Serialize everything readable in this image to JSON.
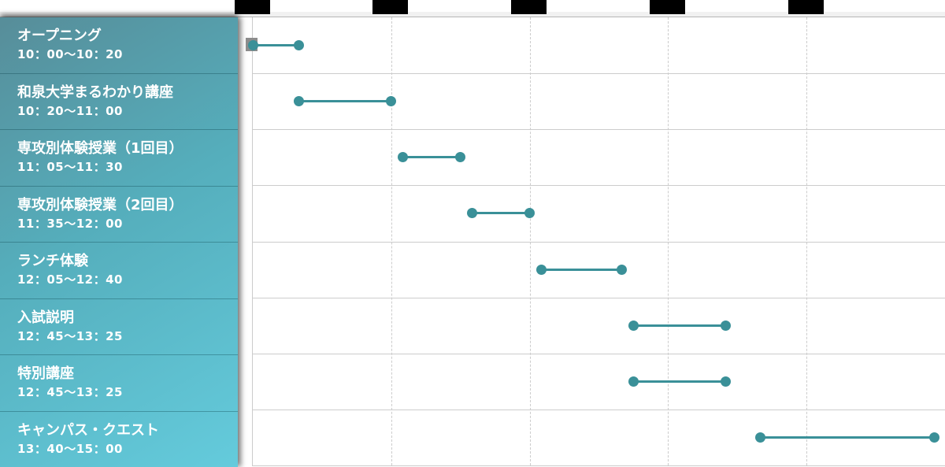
{
  "page": {
    "background": "#ffffff"
  },
  "colors": {
    "timeline_segment": "#3a9098",
    "sidebar_gradient_start": "#578d99",
    "sidebar_gradient_mid": "#55aebc",
    "sidebar_gradient_end": "#64cbdc",
    "sidebar_divider": "rgba(8,62,72,0.35)",
    "sidebar_text": "#ffffff",
    "grid_line": "#cccccc",
    "chart_border": "#cbcbcb",
    "top_strip_bg": "#f1f1f1",
    "hour_tick_box": "#000000",
    "origin_marker_box": "#8c8c8c"
  },
  "chart_data": {
    "type": "gantt",
    "orientation": "horizontal",
    "title": "",
    "x_axis": {
      "start_min": 600,
      "end_min": 900,
      "gridline_interval_min": 60,
      "tick_labels_visible": false,
      "tick_box_offsets_min": [
        0,
        60,
        120,
        180,
        240
      ]
    },
    "grid": {
      "vertical": "dashed",
      "horizontal": "solid"
    },
    "rows": [
      {
        "title": "オープニング",
        "time": "10：00〜10：20",
        "start_min": 600,
        "end_min": 620
      },
      {
        "title": "和泉大学まるわかり講座",
        "time": "10：20〜11：00",
        "start_min": 620,
        "end_min": 660
      },
      {
        "title": "専攻別体験授業（1回目）",
        "time": "11：05〜11：30",
        "start_min": 665,
        "end_min": 690
      },
      {
        "title": "専攻別体験授業（2回目）",
        "time": "11：35〜12：00",
        "start_min": 695,
        "end_min": 720
      },
      {
        "title": "ランチ体験",
        "time": "12：05〜12：40",
        "start_min": 725,
        "end_min": 760
      },
      {
        "title": "入試説明",
        "time": "12：45〜13：25",
        "start_min": 765,
        "end_min": 805
      },
      {
        "title": "特別講座",
        "time": "12：45〜13：25",
        "start_min": 765,
        "end_min": 805
      },
      {
        "title": "キャンパス・クエスト",
        "time": "13：40〜15：00",
        "start_min": 820,
        "end_min": 900
      }
    ]
  }
}
